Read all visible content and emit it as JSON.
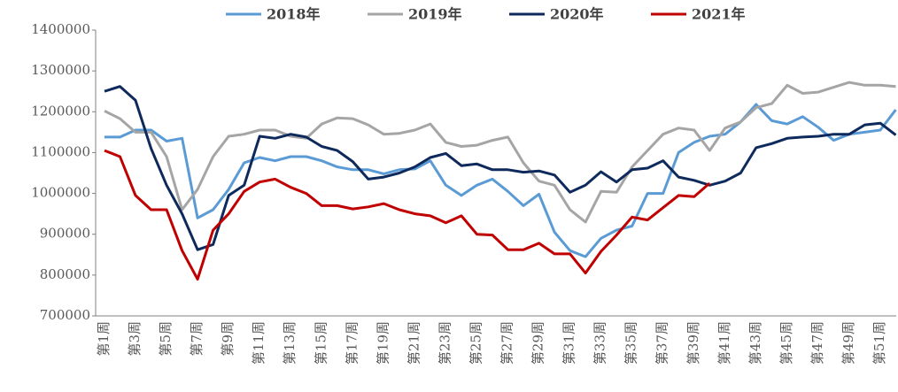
{
  "chart_data": {
    "type": "line",
    "categories": [
      "第1周",
      null,
      "第3周",
      null,
      "第5周",
      null,
      "第7周",
      null,
      "第9周",
      null,
      "第11周",
      null,
      "第13周",
      null,
      "第15周",
      null,
      "第17周",
      null,
      "第19周",
      null,
      "第21周",
      null,
      "第23周",
      null,
      "第25周",
      null,
      "第27周",
      null,
      "第29周",
      null,
      "第31周",
      null,
      "第33周",
      null,
      "第35周",
      null,
      "第37周",
      null,
      "第39周",
      null,
      "第41周",
      null,
      "第43周",
      null,
      "第45周",
      null,
      "第47周",
      null,
      "第49周",
      null,
      "第51周",
      null
    ],
    "series": [
      {
        "name": "2018年",
        "color": "#5b9bd5",
        "values": [
          1138000,
          1138000,
          1155000,
          1155000,
          1128000,
          1135000,
          940000,
          960000,
          1010000,
          1075000,
          1088000,
          1080000,
          1090000,
          1090000,
          1080000,
          1065000,
          1058000,
          1058000,
          1048000,
          1058000,
          1060000,
          1080000,
          1020000,
          995000,
          1020000,
          1035000,
          1005000,
          970000,
          998000,
          905000,
          860000,
          845000,
          890000,
          910000,
          920000,
          1000000,
          1000000,
          1100000,
          1125000,
          1140000,
          1145000,
          1175000,
          1218000,
          1178000,
          1170000,
          1188000,
          1162000,
          1130000,
          1145000,
          1150000,
          1155000,
          1205000
        ]
      },
      {
        "name": "2019年",
        "color": "#a5a5a5",
        "values": [
          1202000,
          1183000,
          1150000,
          1150000,
          1090000,
          960000,
          1010000,
          1090000,
          1140000,
          1145000,
          1155000,
          1155000,
          1140000,
          1135000,
          1170000,
          1185000,
          1183000,
          1168000,
          1145000,
          1147000,
          1155000,
          1170000,
          1125000,
          1115000,
          1118000,
          1130000,
          1138000,
          1075000,
          1030000,
          1020000,
          960000,
          930000,
          1005000,
          1003000,
          1065000,
          1105000,
          1145000,
          1160000,
          1155000,
          1105000,
          1160000,
          1175000,
          1210000,
          1220000,
          1265000,
          1245000,
          1248000,
          1260000,
          1272000,
          1265000,
          1265000,
          1262000
        ]
      },
      {
        "name": "2020年",
        "color": "#0e2a5c",
        "values": [
          1250000,
          1262000,
          1228000,
          1110000,
          1020000,
          950000,
          862000,
          875000,
          995000,
          1020000,
          1140000,
          1135000,
          1145000,
          1138000,
          1115000,
          1105000,
          1078000,
          1035000,
          1040000,
          1050000,
          1065000,
          1088000,
          1098000,
          1068000,
          1072000,
          1058000,
          1058000,
          1052000,
          1055000,
          1045000,
          1003000,
          1020000,
          1053000,
          1028000,
          1058000,
          1062000,
          1080000,
          1040000,
          1032000,
          1020000,
          1030000,
          1050000,
          1112000,
          1122000,
          1135000,
          1138000,
          1140000,
          1145000,
          1145000,
          1168000,
          1172000,
          1143000
        ]
      },
      {
        "name": "2021年",
        "color": "#c00000",
        "values": [
          1105000,
          1090000,
          995000,
          960000,
          960000,
          860000,
          790000,
          910000,
          950000,
          1005000,
          1028000,
          1035000,
          1015000,
          1000000,
          970000,
          970000,
          962000,
          967000,
          975000,
          960000,
          950000,
          945000,
          928000,
          945000,
          900000,
          898000,
          862000,
          862000,
          878000,
          852000,
          852000,
          805000,
          858000,
          898000,
          942000,
          935000,
          965000,
          995000,
          992000,
          1025000,
          null,
          null,
          null,
          null,
          null,
          null,
          null,
          null,
          null,
          null,
          null,
          null
        ]
      }
    ],
    "ylim": [
      700000,
      1400000
    ],
    "yticks": [
      700000,
      800000,
      900000,
      1000000,
      1100000,
      1200000,
      1300000,
      1400000
    ],
    "legend": "top",
    "grid": false
  }
}
